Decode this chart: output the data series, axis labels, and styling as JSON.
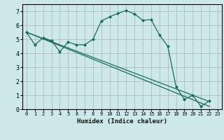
{
  "xlabel": "Humidex (Indice chaleur)",
  "ylabel": "",
  "bg_color": "#cce8e8",
  "grid_color": "#b0b0b0",
  "line_color": "#1a6b5a",
  "xlim": [
    -0.5,
    23.5
  ],
  "ylim": [
    0,
    7.5
  ],
  "xticks": [
    0,
    1,
    2,
    3,
    4,
    5,
    6,
    7,
    8,
    9,
    10,
    11,
    12,
    13,
    14,
    15,
    16,
    17,
    18,
    19,
    20,
    21,
    22,
    23
  ],
  "yticks": [
    0,
    1,
    2,
    3,
    4,
    5,
    6,
    7
  ],
  "series1_x": [
    0,
    1,
    2,
    3,
    4,
    5,
    6,
    7,
    8,
    9,
    10,
    11,
    12,
    13,
    14,
    15,
    16,
    17,
    18,
    19,
    20,
    21,
    22
  ],
  "series1_y": [
    5.5,
    4.6,
    5.1,
    4.9,
    4.1,
    4.8,
    4.6,
    4.6,
    5.0,
    6.3,
    6.6,
    6.85,
    7.05,
    6.8,
    6.35,
    6.4,
    5.3,
    4.5,
    1.6,
    0.7,
    1.0,
    0.2,
    0.6
  ],
  "series2_x": [
    0,
    22
  ],
  "series2_y": [
    5.5,
    0.55
  ],
  "series3_x": [
    0,
    22
  ],
  "series3_y": [
    5.5,
    0.2
  ],
  "marker_x": [
    0,
    1,
    2,
    3,
    4,
    5,
    6,
    7,
    8,
    9,
    10,
    11,
    12,
    13,
    14,
    15,
    16,
    17,
    18,
    19,
    20,
    21,
    22
  ],
  "marker_y": [
    5.5,
    4.6,
    5.1,
    4.9,
    4.1,
    4.8,
    4.6,
    4.6,
    5.0,
    6.3,
    6.6,
    6.85,
    7.05,
    6.8,
    6.35,
    6.4,
    5.3,
    4.5,
    1.6,
    0.7,
    1.0,
    0.2,
    0.6
  ]
}
